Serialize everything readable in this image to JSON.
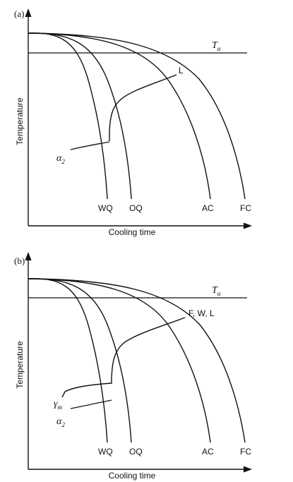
{
  "panels": [
    {
      "label": "(a)",
      "ylabel": "Temperature",
      "xlabel": "Cooling time",
      "threshold": {
        "symbol": "T",
        "subscript": "α"
      },
      "curves": [
        "WQ",
        "OQ",
        "AC",
        "FC"
      ],
      "transformation_line": {
        "label": "L"
      },
      "phase_labels": [
        {
          "symbol": "α",
          "subscript": "2"
        }
      ]
    },
    {
      "label": "(b)",
      "ylabel": "Temperature",
      "xlabel": "Cooling time",
      "threshold": {
        "symbol": "T",
        "subscript": "α"
      },
      "curves": [
        "WQ",
        "OQ",
        "AC",
        "FC"
      ],
      "transformation_line": {
        "label": "F, W, L"
      },
      "phase_labels": [
        {
          "symbol": "γ",
          "subscript": "m"
        },
        {
          "symbol": "α",
          "subscript": "2"
        }
      ]
    }
  ]
}
